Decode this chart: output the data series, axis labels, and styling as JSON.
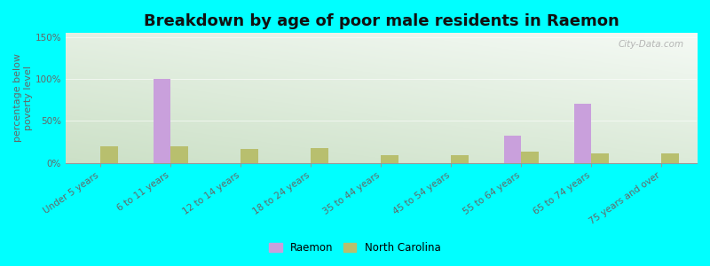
{
  "title": "Breakdown by age of poor male residents in Raemon",
  "categories": [
    "Under 5 years",
    "6 to 11 years",
    "12 to 14 years",
    "18 to 24 years",
    "35 to 44 years",
    "45 to 54 years",
    "55 to 64 years",
    "65 to 74 years",
    "75 years and over"
  ],
  "raemon_values": [
    0,
    100,
    0,
    0,
    0,
    0,
    32,
    70,
    0
  ],
  "nc_values": [
    20,
    20,
    16,
    18,
    9,
    9,
    13,
    11,
    11
  ],
  "raemon_color": "#c9a0dc",
  "nc_color": "#b8bf6e",
  "background_color": "#00ffff",
  "ylabel": "percentage below\npoverty level",
  "ylim": [
    0,
    155
  ],
  "yticks": [
    0,
    50,
    100,
    150
  ],
  "ytick_labels": [
    "0%",
    "50%",
    "100%",
    "150%"
  ],
  "bar_width": 0.25,
  "title_fontsize": 13,
  "axis_label_fontsize": 8,
  "tick_label_fontsize": 7.5,
  "watermark_text": "City-Data.com"
}
